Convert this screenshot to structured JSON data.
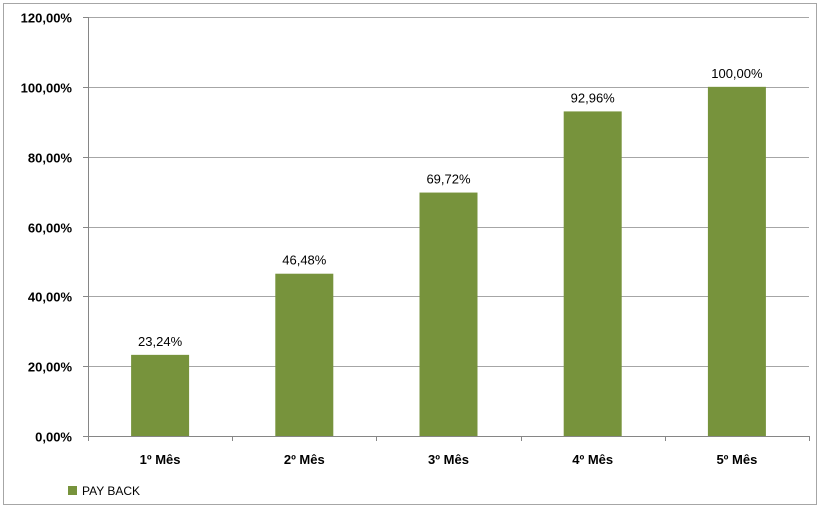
{
  "chart_data": {
    "type": "bar",
    "categories": [
      "1º Mês",
      "2º Mês",
      "3º Mês",
      "4º Mês",
      "5º Mês"
    ],
    "series": [
      {
        "name": "PAY BACK",
        "values": [
          23.24,
          46.48,
          69.72,
          92.96,
          100.0
        ],
        "labels": [
          "23,24%",
          "46,48%",
          "69,72%",
          "92,96%",
          "100,00%"
        ],
        "color": "#77933c"
      }
    ],
    "ylim": [
      0,
      120
    ],
    "yticks": [
      {
        "value": 0,
        "label": "0,00%"
      },
      {
        "value": 20,
        "label": "20,00%"
      },
      {
        "value": 40,
        "label": "40,00%"
      },
      {
        "value": 60,
        "label": "60,00%"
      },
      {
        "value": 80,
        "label": "80,00%"
      },
      {
        "value": 100,
        "label": "100,00%"
      },
      {
        "value": 120,
        "label": "120,00%"
      }
    ],
    "grid": true,
    "legend": "bottom-left",
    "colors": {
      "gridline": "#a6a6a6",
      "axis": "#868686"
    }
  }
}
